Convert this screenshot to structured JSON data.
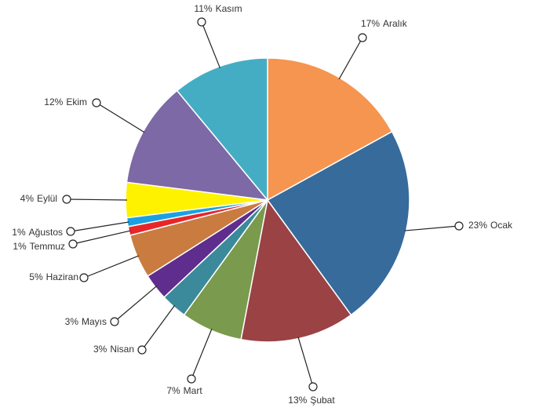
{
  "chart_data": {
    "type": "pie",
    "categories": [
      "Aralık",
      "Ocak",
      "Şubat",
      "Mart",
      "Nisan",
      "Mayıs",
      "Haziran",
      "Temmuz",
      "Ağustos",
      "Eylül",
      "Ekim",
      "Kasım"
    ],
    "values": [
      17,
      23,
      13,
      7,
      3,
      3,
      5,
      1,
      1,
      4,
      12,
      11
    ],
    "value_labels": [
      "17%",
      "23%",
      "13%",
      "7%",
      "3%",
      "3%",
      "5%",
      "1%",
      "1%",
      "4%",
      "12%",
      "11%"
    ],
    "colors": [
      "#f5954f",
      "#366b9c",
      "#9a4244",
      "#7a9a4e",
      "#3a8a9b",
      "#5e2d8d",
      "#c97b40",
      "#e8262a",
      "#1ba1e2",
      "#fff200",
      "#7c69a5",
      "#44adc4"
    ]
  }
}
